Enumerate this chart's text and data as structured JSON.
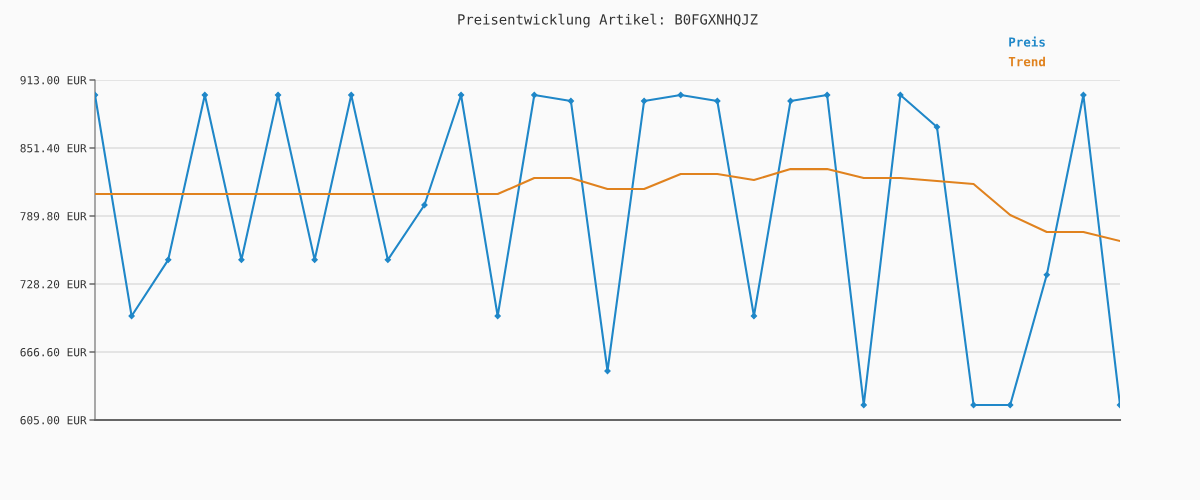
{
  "chart_data": {
    "type": "line",
    "title": "Preisentwicklung Artikel: B0FGXNHQJZ",
    "categories": [
      null,
      null,
      null,
      null,
      null,
      null,
      null,
      null,
      null,
      null,
      null,
      null,
      null,
      null,
      null,
      null,
      null,
      null,
      null,
      null,
      null,
      null,
      null,
      null,
      null,
      null,
      null,
      null,
      null
    ],
    "series": [
      {
        "name": "Preis",
        "color": "#1f87c8",
        "marker": "diamond",
        "values": [
          899.4,
          699.2,
          750.1,
          899.4,
          750.1,
          899.4,
          750.1,
          899.4,
          750.1,
          799.8,
          899.4,
          699.2,
          899.4,
          894,
          649.4,
          894,
          899.4,
          894,
          699.2,
          894,
          899.4,
          618.6,
          899.4,
          870.4,
          618.6,
          618.6,
          736.5,
          899.4,
          618.6
        ]
      },
      {
        "name": "Trend",
        "color": "#e0821e",
        "marker": "none",
        "values": [
          809.7,
          809.7,
          809.7,
          809.7,
          809.7,
          809.7,
          809.7,
          809.7,
          809.7,
          809.7,
          809.7,
          809.7,
          824.2,
          824.2,
          814.2,
          814.2,
          827.8,
          827.8,
          822.4,
          832.3,
          832.3,
          824.2,
          824.2,
          821.5,
          818.8,
          790.7,
          775.3,
          775.3,
          767.2
        ]
      }
    ],
    "ylim": [
      605,
      913
    ],
    "yticks": [
      {
        "value": 605,
        "label": "605.00 EUR"
      },
      {
        "value": 666.6,
        "label": "666.60 EUR"
      },
      {
        "value": 728.2,
        "label": "728.20 EUR"
      },
      {
        "value": 789.8,
        "label": "789.80 EUR"
      },
      {
        "value": 851.4,
        "label": "851.40 EUR"
      },
      {
        "value": 913,
        "label": "913.00 EUR"
      }
    ],
    "grid": "y",
    "legend": "top right",
    "line_style": "solid"
  }
}
